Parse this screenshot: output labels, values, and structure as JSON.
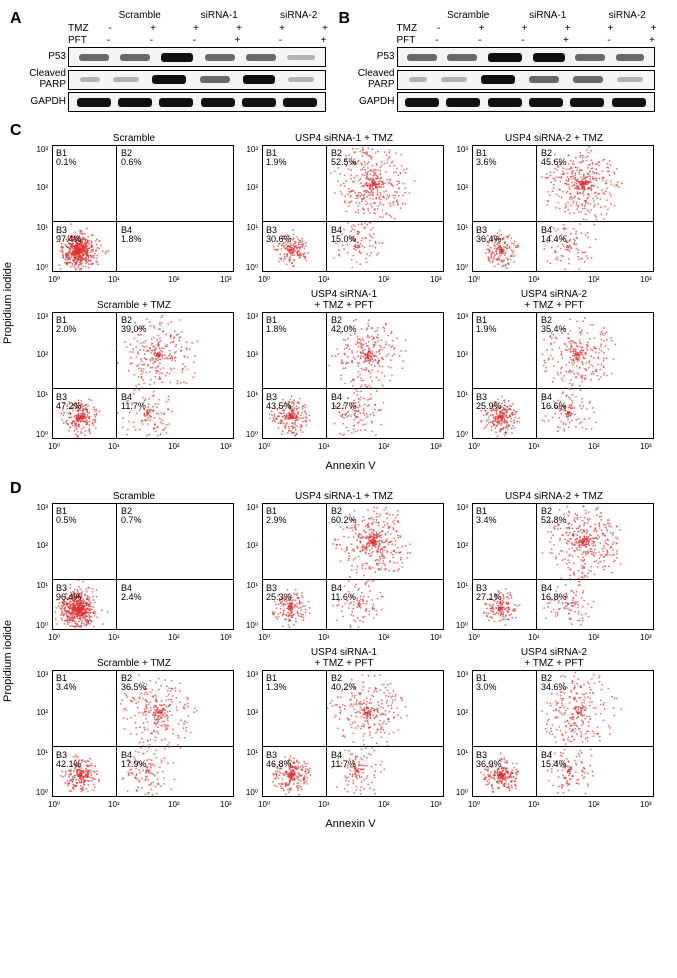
{
  "wb": {
    "tmz_label": "TMZ",
    "pft_label": "PFT",
    "groups": [
      "Scramble",
      "siRNA-1",
      "siRNA-2"
    ],
    "pm_rows": {
      "tmz": [
        "-",
        "+",
        "+",
        "+",
        "+",
        "+"
      ],
      "pft": [
        "-",
        "-",
        "-",
        "+",
        "-",
        "+"
      ]
    },
    "targets": [
      "P53",
      "Cleaved\nPARP",
      "GAPDH"
    ]
  },
  "panels": {
    "A": "A",
    "B": "B",
    "C": "C",
    "D": "D"
  },
  "fc": {
    "y_axis": "Propidium iodide",
    "x_axis": "Annexin V",
    "log_ticks": [
      "10⁰",
      "10¹",
      "10²",
      "10³"
    ],
    "C": {
      "plots": [
        {
          "title": "Scramble",
          "b1": "0.1%",
          "b2": "0.6%",
          "b3": "97.4%",
          "b4": "1.8%",
          "pattern": "ll"
        },
        {
          "title": "USP4 siRNA-1 + TMZ",
          "b1": "1.9%",
          "b2": "52.5%",
          "b3": "30.6%",
          "b4": "15.0%",
          "pattern": "ur"
        },
        {
          "title": "USP4 siRNA-2 + TMZ",
          "b1": "3.6%",
          "b2": "45.6%",
          "b3": "36.4%",
          "b4": "14.4%",
          "pattern": "ur"
        },
        {
          "title": "Scramble + TMZ",
          "b1": "2.0%",
          "b2": "39.0%",
          "b3": "47.2%",
          "b4": "11.7%",
          "pattern": "mix"
        },
        {
          "title": "USP4 siRNA-1\n+ TMZ + PFT",
          "b1": "1.8%",
          "b2": "42.0%",
          "b3": "43.5%",
          "b4": "12.7%",
          "pattern": "mix"
        },
        {
          "title": "USP4 siRNA-2\n+ TMZ + PFT",
          "b1": "1.9%",
          "b2": "35.4%",
          "b3": "25.9%",
          "b4": "16.6%",
          "pattern": "mix"
        }
      ]
    },
    "D": {
      "plots": [
        {
          "title": "Scramble",
          "b1": "0.5%",
          "b2": "0.7%",
          "b3": "96.4%",
          "b4": "2.4%",
          "pattern": "ll"
        },
        {
          "title": "USP4 siRNA-1 + TMZ",
          "b1": "2.9%",
          "b2": "60.2%",
          "b3": "25.3%",
          "b4": "11.6%",
          "pattern": "ur"
        },
        {
          "title": "USP4 siRNA-2 + TMZ",
          "b1": "3.4%",
          "b2": "52.8%",
          "b3": "27.1%",
          "b4": "16.8%",
          "pattern": "ur"
        },
        {
          "title": "Scramble + TMZ",
          "b1": "3.4%",
          "b2": "36.5%",
          "b3": "42.1%",
          "b4": "17.9%",
          "pattern": "mix"
        },
        {
          "title": "USP4 siRNA-1\n+ TMZ + PFT",
          "b1": "1.3%",
          "b2": "40.2%",
          "b3": "46.8%",
          "b4": "11.7%",
          "pattern": "mix"
        },
        {
          "title": "USP4 siRNA-2\n+ TMZ + PFT",
          "b1": "3.0%",
          "b2": "34.6%",
          "b3": "36.9%",
          "b4": "15.4%",
          "pattern": "mix"
        }
      ]
    }
  },
  "styling": {
    "dot_color": "#e03030",
    "border_color": "#000000",
    "background": "#ffffff",
    "font_family": "Arial",
    "panel_label_fontsize": 16,
    "small_fontsize": 10,
    "tick_fontsize": 8
  }
}
